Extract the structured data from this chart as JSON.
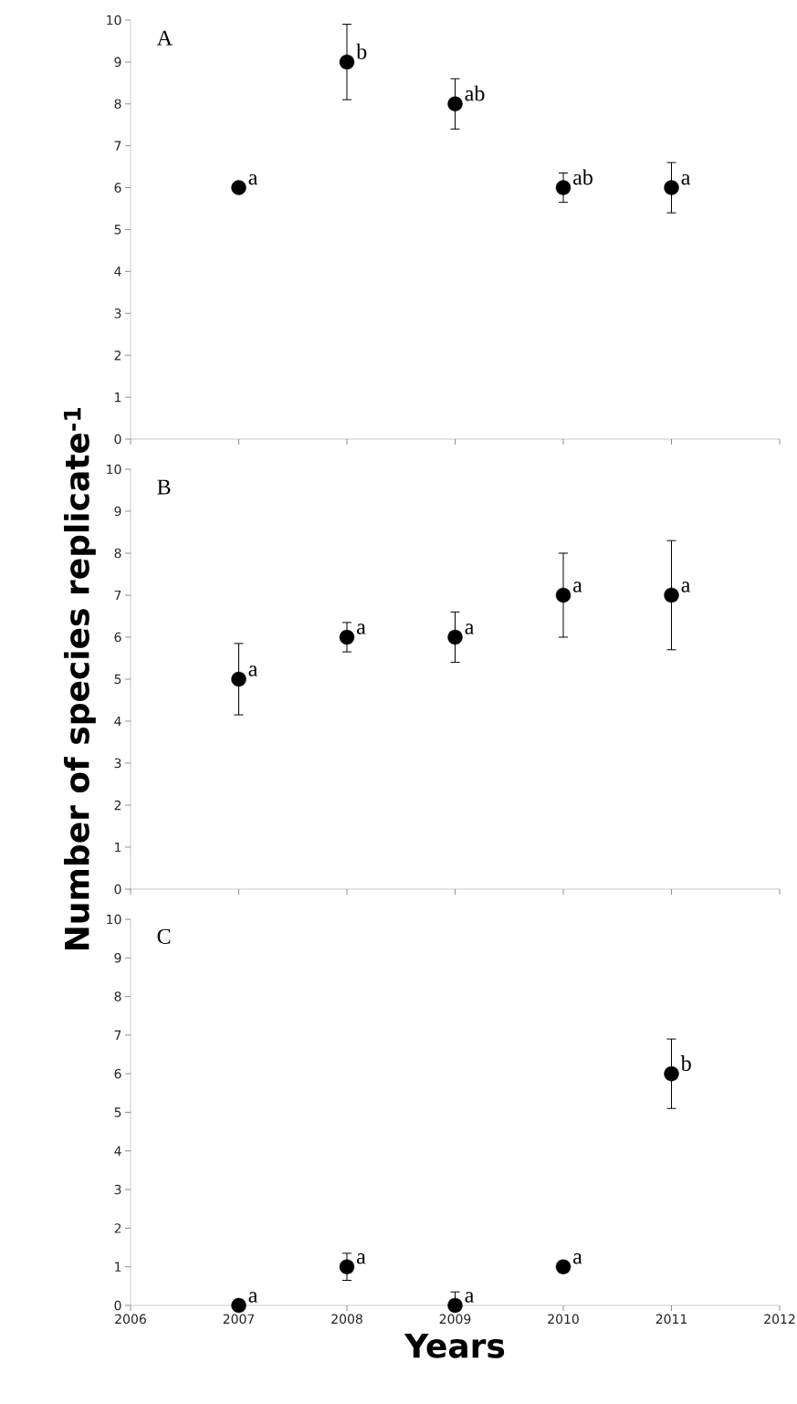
{
  "chart_data": [
    {
      "type": "scatter",
      "x": [
        2007,
        2008,
        2009,
        2010,
        2011
      ],
      "values": [
        6,
        9,
        8,
        6,
        6
      ],
      "errors": [
        null,
        0.9,
        0.6,
        0.35,
        0.6
      ],
      "color": "#000000",
      "marker": "circle",
      "xlim": [
        2006,
        2012
      ],
      "xticks": [
        2006,
        2007,
        2008,
        2009,
        2010,
        2011,
        2012
      ],
      "ylim": [
        0,
        10
      ],
      "yticks": [
        0,
        1,
        2,
        3,
        4,
        5,
        6,
        7,
        8,
        9,
        10
      ],
      "tick_labels": "y",
      "annotations": [
        "A",
        {
          "text": "a",
          "x": 2007,
          "y": 6
        },
        {
          "text": "b",
          "x": 2008,
          "y": 9
        },
        {
          "text": "ab",
          "x": 2009,
          "y": 8
        },
        {
          "text": "ab",
          "x": 2010,
          "y": 6
        },
        {
          "text": "a",
          "x": 2011,
          "y": 6
        }
      ]
    },
    {
      "type": "scatter",
      "x": [
        2007,
        2008,
        2009,
        2010,
        2011
      ],
      "values": [
        5,
        6,
        6,
        7,
        7
      ],
      "errors": [
        0.85,
        0.35,
        0.6,
        1,
        1.3
      ],
      "color": "#000000",
      "marker": "circle",
      "xlim": [
        2006,
        2012
      ],
      "xticks": [
        2006,
        2007,
        2008,
        2009,
        2010,
        2011,
        2012
      ],
      "ylim": [
        0,
        10
      ],
      "yticks": [
        0,
        1,
        2,
        3,
        4,
        5,
        6,
        7,
        8,
        9,
        10
      ],
      "tick_labels": "y",
      "ylabel": "Number of species replicate$^{-1}$",
      "annotations": [
        "B",
        {
          "text": "a",
          "x": 2007,
          "y": 5
        },
        {
          "text": "a",
          "x": 2008,
          "y": 6
        },
        {
          "text": "a",
          "x": 2009,
          "y": 6
        },
        {
          "text": "a",
          "x": 2010,
          "y": 7
        },
        {
          "text": "a",
          "x": 2011,
          "y": 7
        }
      ]
    },
    {
      "type": "scatter",
      "x": [
        2007,
        2008,
        2009,
        2010,
        2011
      ],
      "values": [
        0,
        1,
        0,
        1,
        6
      ],
      "errors": [
        null,
        0.35,
        [
          0,
          0.35
        ],
        null,
        0.9
      ],
      "color": "#000000",
      "marker": "circle",
      "xlim": [
        2006,
        2012
      ],
      "xticks": [
        2006,
        2007,
        2008,
        2009,
        2010,
        2011,
        2012
      ],
      "ylim": [
        0,
        10
      ],
      "yticks": [
        0,
        1,
        2,
        3,
        4,
        5,
        6,
        7,
        8,
        9,
        10
      ],
      "xlabel": "Years",
      "annotations": [
        "C",
        {
          "text": "a",
          "x": 2007,
          "y": 0
        },
        {
          "text": "a",
          "x": 2008,
          "y": 1
        },
        {
          "text": "a",
          "x": 2009,
          "y": 0
        },
        {
          "text": "a",
          "x": 2010,
          "y": 1
        },
        {
          "text": "b",
          "x": 2011,
          "y": 6
        }
      ]
    }
  ]
}
